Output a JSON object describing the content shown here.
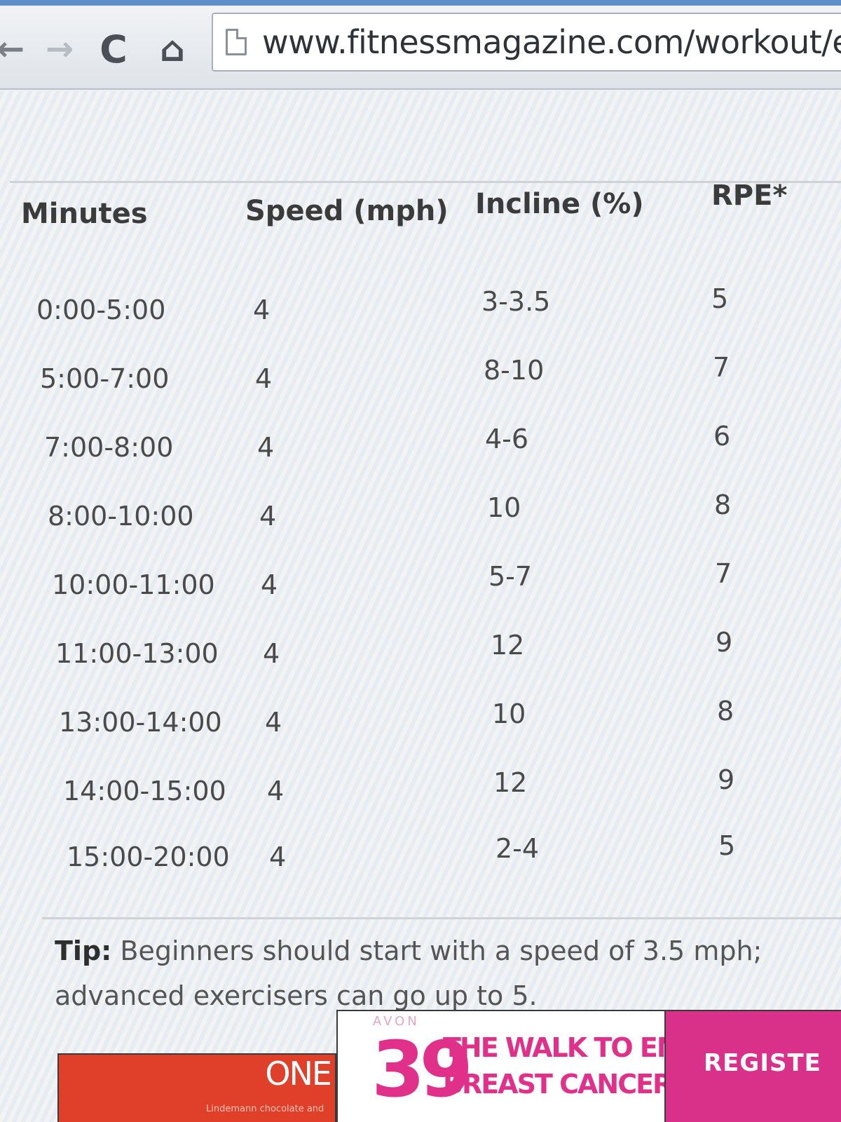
{
  "browser": {
    "url": "www.fitnessmagazine.com/workout/e",
    "back_icon": "arrow-left-icon",
    "forward_icon": "arrow-right-icon",
    "reload_icon": "reload-icon",
    "home_icon": "home-icon"
  },
  "table": {
    "headers": [
      "Minutes",
      "Speed (mph)",
      "Incline (%)",
      "RPE*"
    ],
    "rows": [
      [
        "0:00-5:00",
        "4",
        "3-3.5",
        "5"
      ],
      [
        "5:00-7:00",
        "4",
        "8-10",
        "7"
      ],
      [
        "7:00-8:00",
        "4",
        "4-6",
        "6"
      ],
      [
        "8:00-10:00",
        "4",
        "10",
        "8"
      ],
      [
        "10:00-11:00",
        "4",
        "5-7",
        "7"
      ],
      [
        "11:00-13:00",
        "4",
        "12",
        "9"
      ],
      [
        "13:00-14:00",
        "4",
        "10",
        "8"
      ],
      [
        "14:00-15:00",
        "4",
        "12",
        "9"
      ],
      [
        "15:00-20:00",
        "4",
        "2-4",
        "5"
      ]
    ]
  },
  "tip": {
    "label": "Tip:",
    "text": " Beginners should start with a speed of 3.5 mph; advanced exercisers can go up to 5."
  },
  "ad": {
    "one_label": "ONE",
    "fine_print": "Lindemann chocolate and",
    "avon_mark": "AVON",
    "number": "39",
    "line1": "THE WALK TO END",
    "line2": "BREAST CANCER",
    "register_label": "REGISTE"
  },
  "colors": {
    "ad_red": "#e0402a",
    "ad_pink": "#e0308a",
    "register_bg": "#d9318a"
  }
}
